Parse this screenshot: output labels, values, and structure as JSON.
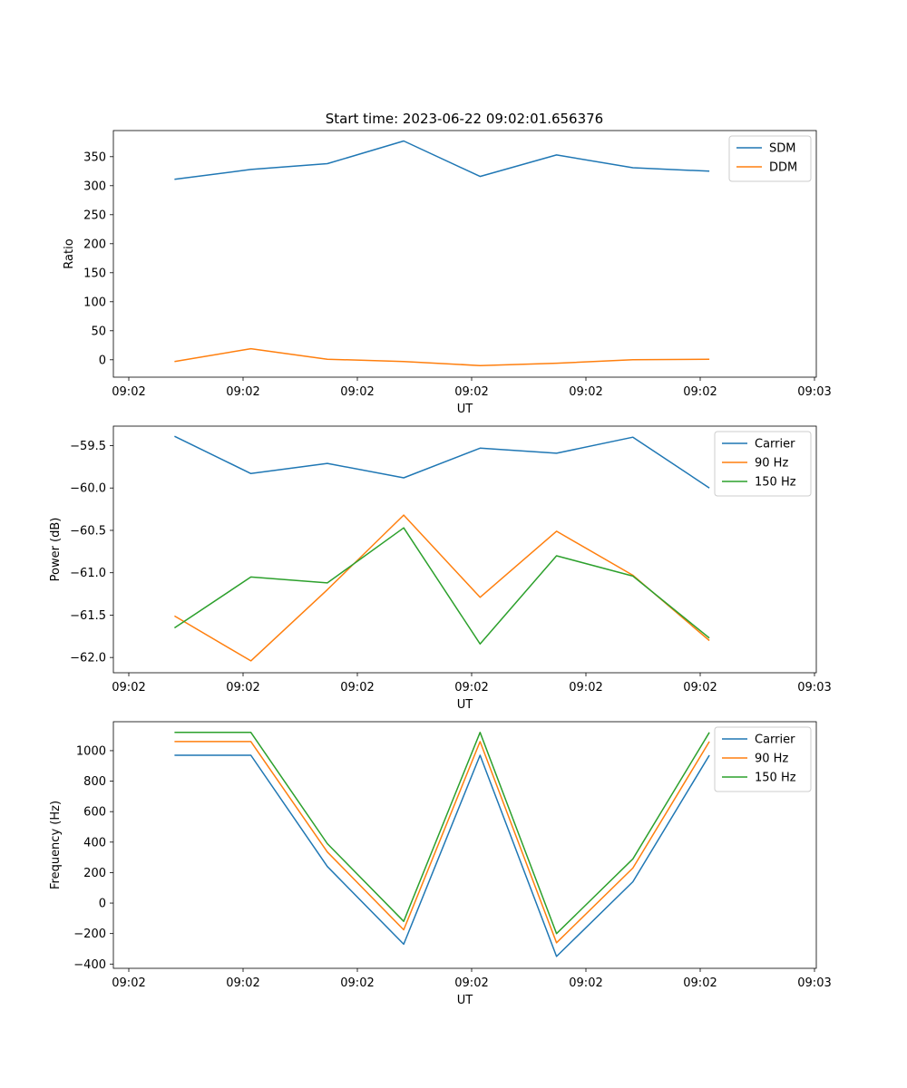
{
  "figure": {
    "title": "Start time: 2023-06-22 09:02:01.656376"
  },
  "chart_data": [
    {
      "type": "line",
      "title": "Start time: 2023-06-22 09:02:01.656376",
      "xlabel": "UT",
      "ylabel": "Ratio",
      "x_tick_labels": [
        "09:02",
        "09:02",
        "09:02",
        "09:02",
        "09:02",
        "09:02",
        "09:03"
      ],
      "y_ticks": [
        0,
        50,
        100,
        150,
        200,
        250,
        300,
        350
      ],
      "ylim": [
        -30,
        395
      ],
      "x": [
        1,
        2,
        3,
        4,
        5,
        6,
        7,
        8
      ],
      "xlim": [
        0.2,
        9.4
      ],
      "legend_position": "top-right",
      "series": [
        {
          "name": "SDM",
          "color": "#1f77b4",
          "values": [
            311,
            328,
            338,
            377,
            316,
            353,
            331,
            325
          ]
        },
        {
          "name": "DDM",
          "color": "#ff7f0e",
          "values": [
            -3,
            19,
            1,
            -3,
            -10,
            -6,
            0,
            1
          ]
        }
      ]
    },
    {
      "type": "line",
      "xlabel": "UT",
      "ylabel": "Power (dB)",
      "x_tick_labels": [
        "09:02",
        "09:02",
        "09:02",
        "09:02",
        "09:02",
        "09:02",
        "09:03"
      ],
      "y_ticks": [
        -62.0,
        -61.5,
        -61.0,
        -60.5,
        -60.0,
        -59.5
      ],
      "y_tick_labels": [
        "−62.0",
        "−61.5",
        "−61.0",
        "−60.5",
        "−60.0",
        "−59.5"
      ],
      "ylim": [
        -62.18,
        -59.27
      ],
      "x": [
        1,
        2,
        3,
        4,
        5,
        6,
        7,
        8
      ],
      "xlim": [
        0.2,
        9.4
      ],
      "legend_position": "top-right",
      "series": [
        {
          "name": "Carrier",
          "color": "#1f77b4",
          "values": [
            -59.39,
            -59.83,
            -59.71,
            -59.88,
            -59.53,
            -59.59,
            -59.4,
            -60.0
          ]
        },
        {
          "name": "90 Hz",
          "color": "#ff7f0e",
          "values": [
            -61.51,
            -62.04,
            -61.2,
            -60.32,
            -61.29,
            -60.51,
            -61.03,
            -61.8
          ]
        },
        {
          "name": "150 Hz",
          "color": "#2ca02c",
          "values": [
            -61.65,
            -61.05,
            -61.12,
            -60.47,
            -61.84,
            -60.8,
            -61.04,
            -61.77
          ]
        }
      ]
    },
    {
      "type": "line",
      "xlabel": "UT",
      "ylabel": "Frequency (Hz)",
      "x_tick_labels": [
        "09:02",
        "09:02",
        "09:02",
        "09:02",
        "09:02",
        "09:02",
        "09:03"
      ],
      "y_ticks": [
        -400,
        -200,
        0,
        200,
        400,
        600,
        800,
        1000
      ],
      "y_tick_labels": [
        "−400",
        "−200",
        "0",
        "200",
        "400",
        "600",
        "800",
        "1000"
      ],
      "ylim": [
        -428,
        1190
      ],
      "x": [
        1,
        2,
        3,
        4,
        5,
        6,
        7,
        8
      ],
      "xlim": [
        0.2,
        9.4
      ],
      "legend_position": "top-right",
      "series": [
        {
          "name": "Carrier",
          "color": "#1f77b4",
          "values": [
            970,
            970,
            240,
            -270,
            970,
            -350,
            140,
            970
          ]
        },
        {
          "name": "90 Hz",
          "color": "#ff7f0e",
          "values": [
            1060,
            1060,
            335,
            -175,
            1060,
            -260,
            230,
            1060
          ]
        },
        {
          "name": "150 Hz",
          "color": "#2ca02c",
          "values": [
            1120,
            1120,
            390,
            -120,
            1120,
            -200,
            290,
            1120
          ]
        }
      ]
    }
  ]
}
